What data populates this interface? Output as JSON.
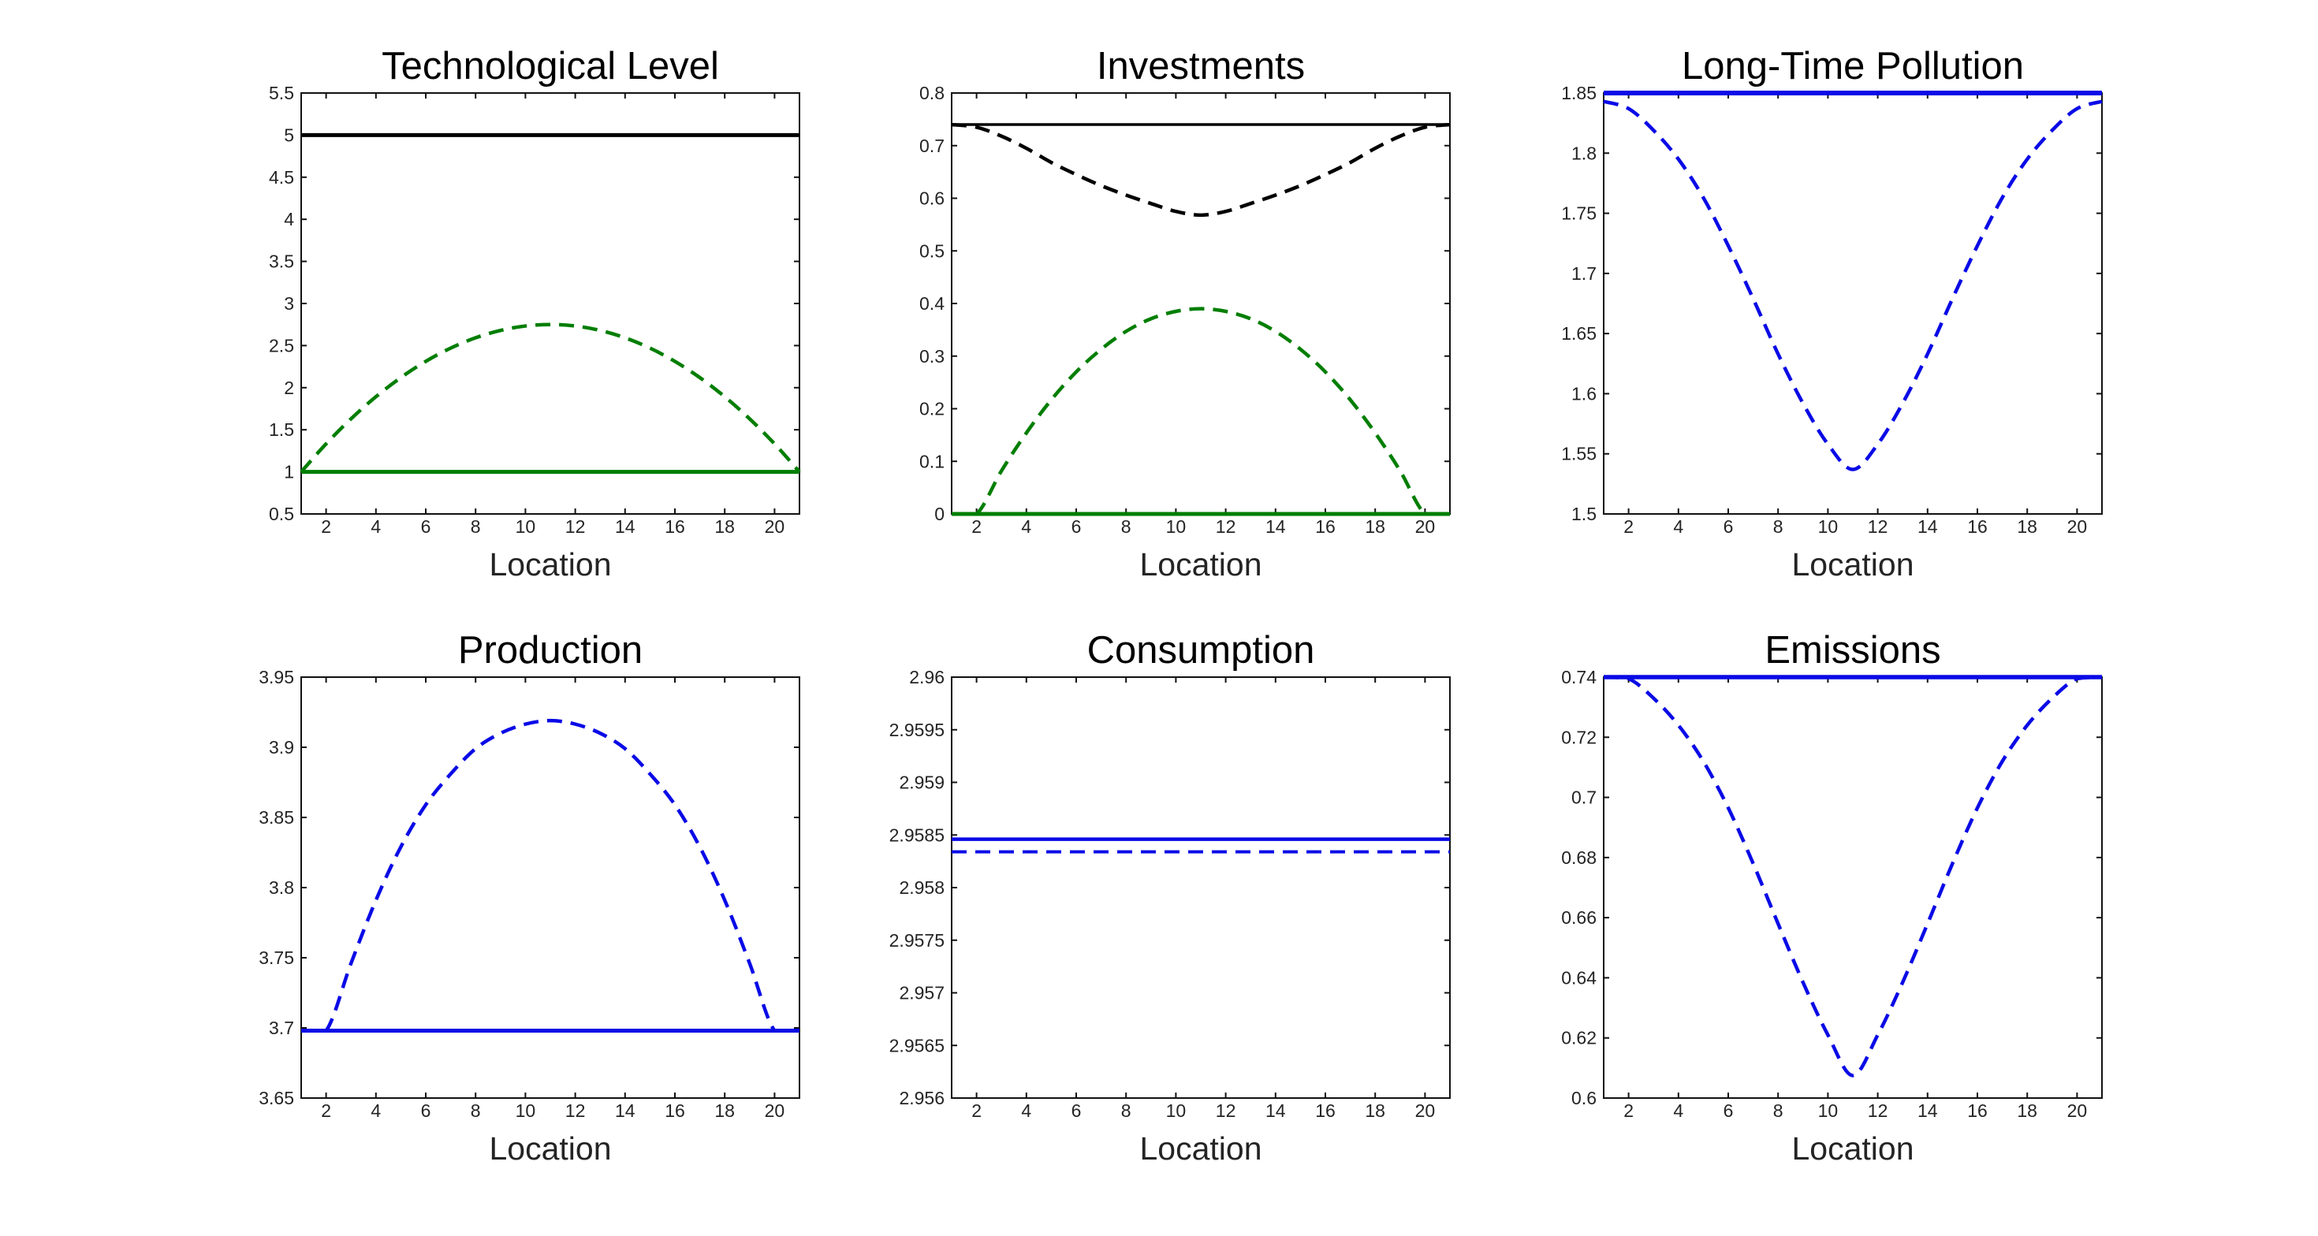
{
  "page": {
    "background": "#ffffff"
  },
  "labels": {
    "x_axis": "Location"
  },
  "chart_data": [
    {
      "id": "technological-level",
      "type": "line",
      "title": "Technological Level",
      "xlabel": "Location",
      "xlim": [
        1,
        21
      ],
      "ylim": [
        0.5,
        5.5
      ],
      "grid": false,
      "legend": "none",
      "xticks": [
        2,
        4,
        6,
        8,
        10,
        12,
        14,
        16,
        18,
        20
      ],
      "yticks": [
        0.5,
        1,
        1.5,
        2,
        2.5,
        3,
        3.5,
        4,
        4.5,
        5,
        5.5
      ],
      "ytick_labels": [
        "0.5",
        "1",
        "1.5",
        "2",
        "2.5",
        "3",
        "3.5",
        "4",
        "4.5",
        "5",
        "5.5"
      ],
      "x": [
        1,
        2,
        3,
        4,
        5,
        6,
        7,
        8,
        9,
        10,
        11,
        12,
        13,
        14,
        15,
        16,
        17,
        18,
        19,
        20,
        21
      ],
      "series": [
        {
          "name": "black-solid-level",
          "color": "#000000",
          "style": "solid",
          "width": 5,
          "y_const": 5
        },
        {
          "name": "green-solid-level",
          "color": "#007e00",
          "style": "solid",
          "width": 5,
          "y_const": 1
        },
        {
          "name": "green-dashed-curve",
          "color": "#007e00",
          "style": "dashed",
          "width": 4.5,
          "y": [
            1.0,
            1.3325,
            1.63,
            1.8925,
            2.12,
            2.3125,
            2.47,
            2.5925,
            2.68,
            2.7325,
            2.75,
            2.7325,
            2.68,
            2.5925,
            2.47,
            2.3125,
            2.12,
            1.8925,
            1.63,
            1.3325,
            1.0
          ]
        }
      ]
    },
    {
      "id": "investments",
      "type": "line",
      "title": "Investments",
      "xlabel": "Location",
      "xlim": [
        1,
        21
      ],
      "ylim": [
        0,
        0.8
      ],
      "grid": false,
      "legend": "none",
      "xticks": [
        2,
        4,
        6,
        8,
        10,
        12,
        14,
        16,
        18,
        20
      ],
      "yticks": [
        0,
        0.1,
        0.2,
        0.3,
        0.4,
        0.5,
        0.6,
        0.7,
        0.8
      ],
      "ytick_labels": [
        "0",
        "0.1",
        "0.2",
        "0.3",
        "0.4",
        "0.5",
        "0.6",
        "0.7",
        "0.8"
      ],
      "x": [
        1,
        2,
        3,
        4,
        5,
        6,
        7,
        8,
        9,
        10,
        11,
        12,
        13,
        14,
        15,
        16,
        17,
        18,
        19,
        20,
        21
      ],
      "series": [
        {
          "name": "black-solid-level",
          "color": "#000000",
          "style": "solid",
          "width": 3.5,
          "y_const": 0.74
        },
        {
          "name": "green-solid-level",
          "color": "#007e00",
          "style": "solid",
          "width": 5,
          "y_const": 0
        },
        {
          "name": "black-dashed-curve",
          "color": "#000000",
          "style": "dashed",
          "width": 4.5,
          "y": [
            0.74,
            0.735,
            0.718,
            0.695,
            0.668,
            0.645,
            0.624,
            0.606,
            0.59,
            0.575,
            0.568,
            0.575,
            0.59,
            0.606,
            0.624,
            0.645,
            0.668,
            0.695,
            0.718,
            0.735,
            0.74
          ]
        },
        {
          "name": "green-dashed-curve",
          "color": "#007e00",
          "style": "dashed",
          "width": 4.5,
          "y": [
            0,
            0,
            0.082,
            0.154,
            0.217,
            0.27,
            0.313,
            0.347,
            0.371,
            0.385,
            0.39,
            0.385,
            0.371,
            0.347,
            0.313,
            0.27,
            0.217,
            0.154,
            0.082,
            0,
            0
          ]
        }
      ]
    },
    {
      "id": "long-time-pollution",
      "type": "line",
      "title": "Long-Time Pollution",
      "xlabel": "Location",
      "xlim": [
        1,
        21
      ],
      "ylim": [
        1.5,
        1.85
      ],
      "grid": false,
      "legend": "none",
      "xticks": [
        2,
        4,
        6,
        8,
        10,
        12,
        14,
        16,
        18,
        20
      ],
      "yticks": [
        1.5,
        1.55,
        1.6,
        1.65,
        1.7,
        1.75,
        1.8,
        1.85
      ],
      "ytick_labels": [
        "1.5",
        "1.55",
        "1.6",
        "1.65",
        "1.7",
        "1.75",
        "1.8",
        "1.85"
      ],
      "x": [
        1,
        2,
        3,
        4,
        5,
        6,
        7,
        8,
        9,
        10,
        11,
        12,
        13,
        14,
        15,
        16,
        17,
        18,
        19,
        20,
        21
      ],
      "series": [
        {
          "name": "blue-dashed-curve",
          "color": "#0a0ae6",
          "style": "dashed",
          "width": 4.5,
          "y": [
            1.843,
            1.837,
            1.819,
            1.795,
            1.763,
            1.723,
            1.679,
            1.633,
            1.592,
            1.558,
            1.537,
            1.558,
            1.592,
            1.633,
            1.679,
            1.723,
            1.763,
            1.795,
            1.819,
            1.837,
            1.843
          ]
        },
        {
          "name": "blue-solid-level",
          "color": "#0a0ae6",
          "style": "solid",
          "width": 6,
          "y_const": 1.85
        }
      ]
    },
    {
      "id": "production",
      "type": "line",
      "title": "Production",
      "xlabel": "Location",
      "xlim": [
        1,
        21
      ],
      "ylim": [
        3.65,
        3.95
      ],
      "grid": false,
      "legend": "none",
      "xticks": [
        2,
        4,
        6,
        8,
        10,
        12,
        14,
        16,
        18,
        20
      ],
      "yticks": [
        3.65,
        3.7,
        3.75,
        3.8,
        3.85,
        3.9,
        3.95
      ],
      "ytick_labels": [
        "3.65",
        "3.7",
        "3.75",
        "3.8",
        "3.85",
        "3.9",
        "3.95"
      ],
      "x": [
        1,
        2,
        3,
        4,
        5,
        6,
        7,
        8,
        9,
        10,
        11,
        12,
        13,
        14,
        15,
        16,
        17,
        18,
        19,
        20,
        21
      ],
      "series": [
        {
          "name": "blue-solid-level",
          "color": "#0a0ae6",
          "style": "solid",
          "width": 5,
          "y_const": 3.698
        },
        {
          "name": "blue-dashed-curve",
          "color": "#0a0ae6",
          "style": "dashed",
          "width": 4.5,
          "y": [
            3.698,
            3.698,
            3.746,
            3.791,
            3.829,
            3.859,
            3.881,
            3.899,
            3.91,
            3.9165,
            3.919,
            3.9165,
            3.91,
            3.899,
            3.881,
            3.859,
            3.829,
            3.791,
            3.746,
            3.698,
            3.698
          ]
        }
      ]
    },
    {
      "id": "consumption",
      "type": "line",
      "title": "Consumption",
      "xlabel": "Location",
      "xlim": [
        1,
        21
      ],
      "ylim": [
        2.956,
        2.96
      ],
      "grid": false,
      "legend": "none",
      "xticks": [
        2,
        4,
        6,
        8,
        10,
        12,
        14,
        16,
        18,
        20
      ],
      "yticks": [
        2.956,
        2.9565,
        2.957,
        2.9575,
        2.958,
        2.9585,
        2.959,
        2.9595,
        2.96
      ],
      "ytick_labels": [
        "2.956",
        "2.9565",
        "2.957",
        "2.9575",
        "2.958",
        "2.9585",
        "2.959",
        "2.9595",
        "2.96"
      ],
      "x": [
        1,
        2,
        3,
        4,
        5,
        6,
        7,
        8,
        9,
        10,
        11,
        12,
        13,
        14,
        15,
        16,
        17,
        18,
        19,
        20,
        21
      ],
      "series": [
        {
          "name": "blue-dashed-level",
          "color": "#0a0ae6",
          "style": "dashed",
          "width": 4,
          "y_const": 2.95834
        },
        {
          "name": "blue-solid-level",
          "color": "#0a0ae6",
          "style": "solid",
          "width": 4.5,
          "y_const": 2.95846
        }
      ]
    },
    {
      "id": "emissions",
      "type": "line",
      "title": "Emissions",
      "xlabel": "Location",
      "xlim": [
        1,
        21
      ],
      "ylim": [
        0.6,
        0.74
      ],
      "grid": false,
      "legend": "none",
      "xticks": [
        2,
        4,
        6,
        8,
        10,
        12,
        14,
        16,
        18,
        20
      ],
      "yticks": [
        0.6,
        0.62,
        0.64,
        0.66,
        0.68,
        0.7,
        0.72,
        0.74
      ],
      "ytick_labels": [
        "0.6",
        "0.62",
        "0.64",
        "0.66",
        "0.68",
        "0.7",
        "0.72",
        "0.74"
      ],
      "x": [
        1,
        2,
        3,
        4,
        5,
        6,
        7,
        8,
        9,
        10,
        11,
        12,
        13,
        14,
        15,
        16,
        17,
        18,
        19,
        20,
        21
      ],
      "series": [
        {
          "name": "blue-dashed-curve",
          "color": "#0a0ae6",
          "style": "dashed",
          "width": 4.5,
          "y": [
            0.74,
            0.7395,
            0.733,
            0.724,
            0.712,
            0.6965,
            0.678,
            0.658,
            0.6385,
            0.621,
            0.6075,
            0.621,
            0.6385,
            0.658,
            0.678,
            0.6965,
            0.712,
            0.724,
            0.733,
            0.7395,
            0.74
          ]
        },
        {
          "name": "blue-solid-level",
          "color": "#0a0ae6",
          "style": "solid",
          "width": 5.5,
          "y_const": 0.74
        }
      ]
    }
  ]
}
